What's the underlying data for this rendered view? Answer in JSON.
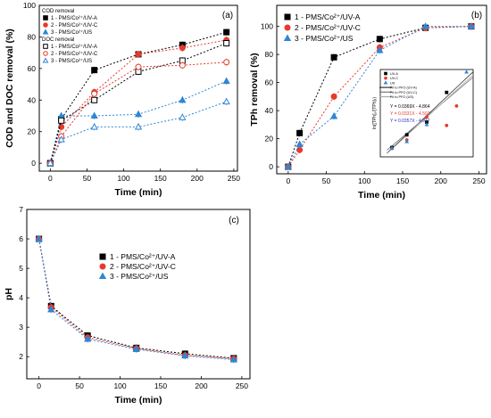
{
  "chart_data": [
    {
      "panel": "(a)",
      "type": "scatter",
      "xlabel": "Time (min)",
      "ylabel": "COD and DOC removal (%)",
      "xlim": [
        -15,
        255
      ],
      "ylim": [
        -5,
        100
      ],
      "xticks": [
        "0",
        "50",
        "100",
        "150",
        "200",
        "250"
      ],
      "yticks": [
        "0",
        "20",
        "40",
        "60",
        "80",
        "100"
      ],
      "legend_position": "top-left",
      "legend_groups": [
        {
          "title": "COD removal",
          "series": [
            {
              "name": "1 - PMS/Co²⁺/UV-A",
              "color": "#000000",
              "marker": "square",
              "filled": true,
              "x": [
                0,
                15,
                60,
                120,
                180,
                240
              ],
              "y": [
                0,
                28,
                59,
                69,
                75,
                83
              ]
            },
            {
              "name": "2 - PMS/Co²⁺/UV-C",
              "color": "#e8392c",
              "marker": "circle",
              "filled": true,
              "x": [
                0,
                15,
                60,
                120,
                180,
                240
              ],
              "y": [
                0,
                23,
                45,
                69,
                73,
                78
              ]
            },
            {
              "name": "3 - PMS/Co²⁺/US",
              "color": "#2e86d6",
              "marker": "triangle",
              "filled": true,
              "x": [
                0,
                15,
                60,
                120,
                180,
                240
              ],
              "y": [
                0,
                30,
                30,
                31,
                40,
                52
              ]
            }
          ]
        },
        {
          "title": "DOC removal",
          "series": [
            {
              "name": "1 - PMS/Co²⁺/UV-A",
              "color": "#000000",
              "marker": "square",
              "filled": false,
              "x": [
                0,
                15,
                60,
                120,
                180,
                240
              ],
              "y": [
                0,
                27,
                40,
                58,
                65,
                76
              ]
            },
            {
              "name": "2 - PMS/Co²⁺/UV-C",
              "color": "#e8392c",
              "marker": "circle",
              "filled": false,
              "x": [
                0,
                15,
                60,
                120,
                180,
                240
              ],
              "y": [
                0,
                17,
                44,
                61,
                62,
                64
              ]
            },
            {
              "name": "3 - PMS/Co²⁺/US",
              "color": "#2e86d6",
              "marker": "triangle",
              "filled": false,
              "x": [
                0,
                15,
                60,
                120,
                180,
                240
              ],
              "y": [
                0,
                15,
                23,
                23,
                29,
                39
              ]
            }
          ]
        }
      ]
    },
    {
      "panel": "(b)",
      "type": "scatter",
      "xlabel": "Time (min)",
      "ylabel": "TPh removal (%)",
      "xlim": [
        -15,
        260
      ],
      "ylim": [
        -5,
        115
      ],
      "xticks": [
        "0",
        "50",
        "100",
        "150",
        "200",
        "250"
      ],
      "yticks": [
        "0",
        "20",
        "40",
        "60",
        "80",
        "100"
      ],
      "legend_position": "top-left",
      "series": [
        {
          "name": "1 - PMS/Co²⁺/UV-A",
          "color": "#000000",
          "marker": "square",
          "x": [
            0,
            15,
            60,
            120,
            180,
            240
          ],
          "y": [
            0,
            24,
            78,
            91,
            99,
            100
          ]
        },
        {
          "name": "2 - PMS/Co²⁺/UV-C",
          "color": "#e8392c",
          "marker": "circle",
          "x": [
            0,
            15,
            60,
            120,
            180,
            240
          ],
          "y": [
            0,
            12,
            50,
            85,
            99,
            100
          ]
        },
        {
          "name": "3 - PMS/Co²⁺/US",
          "color": "#2e86d6",
          "marker": "triangle",
          "x": [
            0,
            15,
            60,
            120,
            180,
            240
          ],
          "y": [
            0,
            16,
            36,
            83,
            100,
            100
          ]
        }
      ],
      "inset": {
        "type": "scatter",
        "ylabel": "ln([TPh]₀/[TPh]ₜ)",
        "xlim": [
          -20,
          260
        ],
        "ylim": [
          -5.3,
          5
        ],
        "legend": [
          {
            "name": "UV-A",
            "color": "#000000",
            "marker": "square"
          },
          {
            "name": "UV-C",
            "color": "#e8392c",
            "marker": "circle"
          },
          {
            "name": "US",
            "color": "#2e86d6",
            "marker": "triangle"
          },
          {
            "name": "Fit to PFO (UV-A)",
            "color": "#333333",
            "marker": "line"
          },
          {
            "name": "Fit to PFO (UV-C)",
            "color": "#777777",
            "marker": "line"
          },
          {
            "name": "Fit to PFO (US)",
            "color": "#aaaaaa",
            "marker": "line"
          }
        ],
        "equations": [
          {
            "text": "Y = 0.0369X - 4.864",
            "color": "#000000"
          },
          {
            "text": "Y = 0.0331X - 4.507",
            "color": "#e8392c"
          },
          {
            "text": "Y = 0.0357X - 4.917",
            "color": "#2e2eb8"
          }
        ],
        "points": [
          {
            "color": "#000000",
            "marker": "square",
            "x": [
              15,
              60,
              120,
              180
            ],
            "y": [
              -4.2,
              -2.7,
              -1.2,
              2.3
            ]
          },
          {
            "color": "#e8392c",
            "marker": "circle",
            "x": [
              15,
              60,
              120,
              180,
              210
            ],
            "y": [
              -4.3,
              -3.3,
              -0.6,
              -1.6,
              0.7
            ]
          },
          {
            "color": "#2e86d6",
            "marker": "triangle",
            "x": [
              15,
              60,
              120,
              240
            ],
            "y": [
              -4.3,
              -3.5,
              -1.5,
              4.7
            ]
          }
        ],
        "fits": [
          {
            "color": "#333333",
            "slope": 0.0369,
            "intercept": -4.864
          },
          {
            "color": "#777777",
            "slope": 0.0331,
            "intercept": -4.507
          },
          {
            "color": "#aaaaaa",
            "slope": 0.0357,
            "intercept": -4.917
          }
        ]
      }
    },
    {
      "panel": "(c)",
      "type": "scatter",
      "xlabel": "Time (min)",
      "ylabel": "pH",
      "xlim": [
        -15,
        260
      ],
      "ylim": [
        1.25,
        7
      ],
      "xticks": [
        "0",
        "50",
        "100",
        "150",
        "200",
        "250"
      ],
      "yticks": [
        "2",
        "3",
        "4",
        "5",
        "6",
        "7"
      ],
      "legend_position": "top-right",
      "series": [
        {
          "name": "1 - PMS/Co²⁺/UV-A",
          "color": "#000000",
          "marker": "square",
          "x": [
            0,
            15,
            60,
            120,
            180,
            240
          ],
          "y": [
            6.0,
            3.72,
            2.72,
            2.3,
            2.1,
            1.95
          ]
        },
        {
          "name": "2 - PMS/Co²⁺/UV-C",
          "color": "#e8392c",
          "marker": "circle",
          "x": [
            0,
            15,
            60,
            120,
            180,
            240
          ],
          "y": [
            6.0,
            3.68,
            2.65,
            2.28,
            2.05,
            1.93
          ]
        },
        {
          "name": "3 - PMS/Co²⁺/US",
          "color": "#2e86d6",
          "marker": "triangle",
          "x": [
            0,
            15,
            60,
            120,
            180,
            240
          ],
          "y": [
            6.0,
            3.6,
            2.6,
            2.25,
            2.03,
            1.9
          ]
        }
      ]
    }
  ]
}
